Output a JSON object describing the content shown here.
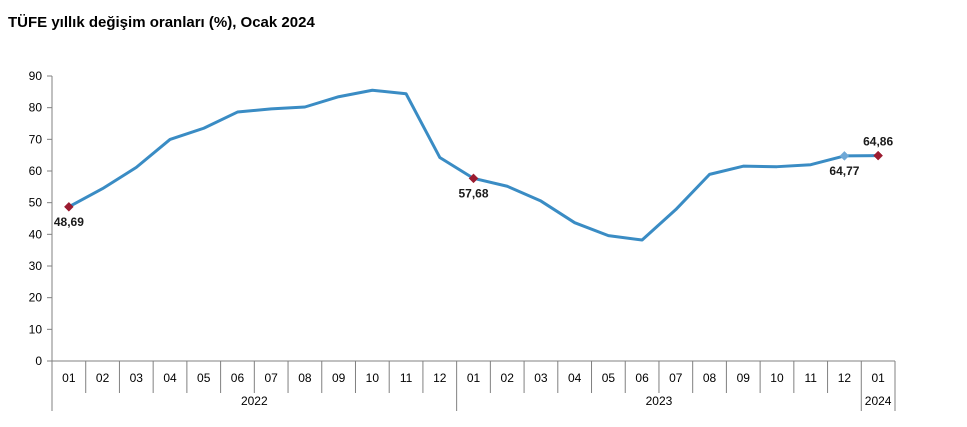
{
  "title": "TÜFE yıllık değişim oranları (%), Ocak 2024",
  "chart_data": {
    "type": "line",
    "title": "TÜFE yıllık değişim oranları (%), Ocak 2024",
    "xlabel": "",
    "ylabel": "",
    "ylim": [
      0,
      90
    ],
    "yticks": [
      0,
      10,
      20,
      30,
      40,
      50,
      60,
      70,
      80,
      90
    ],
    "grid": false,
    "categories": [
      "01",
      "02",
      "03",
      "04",
      "05",
      "06",
      "07",
      "08",
      "09",
      "10",
      "11",
      "12",
      "01",
      "02",
      "03",
      "04",
      "05",
      "06",
      "07",
      "08",
      "09",
      "10",
      "11",
      "12",
      "01"
    ],
    "years": [
      {
        "label": "2022",
        "count": 12
      },
      {
        "label": "2023",
        "count": 12
      },
      {
        "label": "2024",
        "count": 1
      }
    ],
    "series": [
      {
        "values": [
          48.69,
          54.44,
          61.14,
          69.97,
          73.5,
          78.62,
          79.6,
          80.21,
          83.45,
          85.51,
          84.39,
          64.27,
          57.68,
          55.18,
          50.51,
          43.68,
          39.59,
          38.21,
          47.83,
          58.94,
          61.53,
          61.36,
          61.98,
          64.77,
          64.86
        ]
      }
    ],
    "annotations": [
      {
        "index": 0,
        "text": "48,69",
        "position": "below"
      },
      {
        "index": 12,
        "text": "57,68",
        "position": "below"
      },
      {
        "index": 23,
        "text": "64,77",
        "position": "below"
      },
      {
        "index": 24,
        "text": "64,86",
        "position": "above"
      }
    ],
    "colors": {
      "line": "#3a8cc4",
      "marker": "#9b1b30",
      "marker_dec": "#6fa8d6",
      "axis": "#808080"
    }
  }
}
